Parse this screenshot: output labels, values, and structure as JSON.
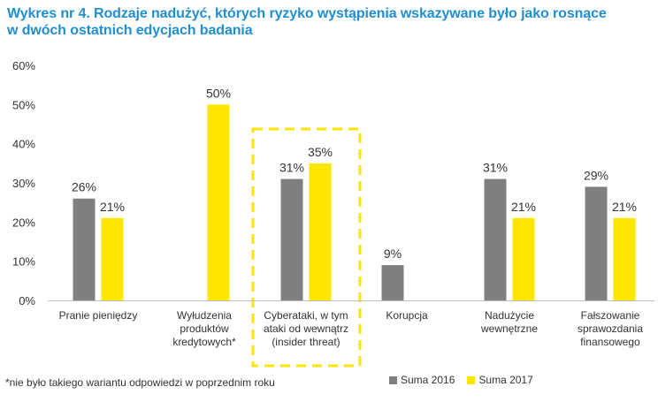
{
  "chart_data": {
    "type": "bar",
    "title": [
      "Wykres nr 4. Rodzaje nadużyć, których ryzyko wystąpienia wskazywane było jako rosnące",
      "w dwóch ostatnich edycjach badania"
    ],
    "categories": [
      [
        "Pranie pieniędzy"
      ],
      [
        "Wyłudzenia",
        "produktów",
        "kredytowych*"
      ],
      [
        "Cyberataki, w tym",
        "ataki od wewnątrz",
        "(insider threat)"
      ],
      [
        "Korupcja"
      ],
      [
        "Nadużycie",
        "wewnętrzne"
      ],
      [
        "Fałszowanie",
        "sprawozdania",
        "finansowego"
      ]
    ],
    "series": [
      {
        "name": "Suma 2016",
        "values": [
          26,
          null,
          31,
          9,
          31,
          29
        ],
        "labels": [
          "26%",
          "",
          "31%",
          "9%",
          "31%",
          "29%"
        ]
      },
      {
        "name": "Suma 2017",
        "values": [
          21,
          50,
          35,
          null,
          21,
          21
        ],
        "labels": [
          "21%",
          "50%",
          "35%",
          "",
          "21%",
          "21%"
        ]
      }
    ],
    "yticks": [
      "0%",
      "10%",
      "20%",
      "30%",
      "40%",
      "50%",
      "60%"
    ],
    "ylim": [
      0,
      60
    ],
    "highlight_category": 2,
    "legend_position": "bottom-right",
    "grid": false
  },
  "colors": {
    "title": "#1f8fd1",
    "series_2016": "#7f7f7f",
    "series_2017": "#ffe600",
    "highlight_border": "#ffe600"
  },
  "footnote": "*nie było takiego wariantu odpowiedzi w poprzednim roku"
}
